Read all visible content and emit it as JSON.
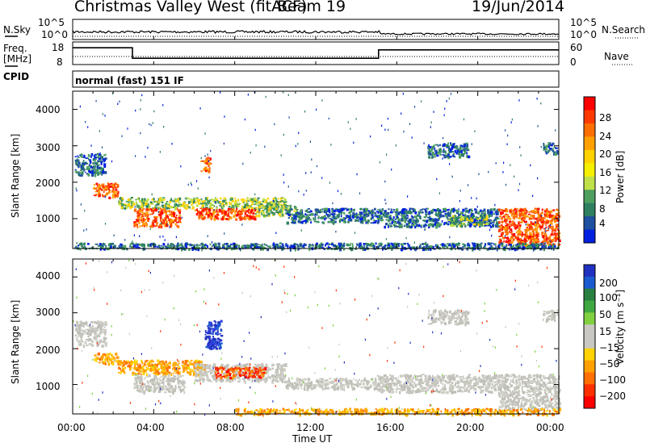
{
  "header": {
    "station": "Christmas Valley West (fitACF)",
    "beam": "Beam 19",
    "date": "19/Jun/2014"
  },
  "summary": {
    "nsky_label": "N.Sky",
    "nsky_ticks": [
      "10^5",
      "10^0"
    ],
    "nsearch_label": "N.Search",
    "nsearch_ticks": [
      "10^5",
      "10^0"
    ],
    "freq_label": [
      "Freq.",
      "[MHz]"
    ],
    "freq_ticks": [
      "18",
      "8"
    ],
    "nave_label": "Nave",
    "nave_ticks": [
      "60",
      "0"
    ],
    "cpid_label": "CPID",
    "cpid_value": "normal (fast) 151 IF",
    "freq_series_mhz": {
      "times_hours": [
        0,
        2.95,
        2.95,
        15.1,
        15.1,
        24
      ],
      "values": [
        16,
        16,
        11,
        11,
        15,
        15
      ]
    }
  },
  "chart_data": [
    {
      "type": "heatmap",
      "panel": "power",
      "ylabel": "Slant Range [km]",
      "ylim": [
        180,
        4500
      ],
      "xlim_hours": [
        0,
        24
      ],
      "y_ticks": [
        "4000",
        "3000",
        "2000",
        "1000"
      ],
      "colorbar": {
        "label": "Power [dB]",
        "ticks": [
          "28",
          "24",
          "20",
          "16",
          "12",
          "8",
          "4"
        ],
        "colors": [
          "#ff0000",
          "#ff3a00",
          "#ff6f00",
          "#ff9f00",
          "#ffd200",
          "#f5f000",
          "#c0e04a",
          "#4fa060",
          "#2e8060",
          "#1f4fa0",
          "#0020e0"
        ]
      },
      "regions": [
        {
          "t0": 0.1,
          "t1": 1.6,
          "r0": 2200,
          "r1": 2800,
          "level": "low"
        },
        {
          "t0": 1.0,
          "t1": 2.2,
          "r0": 1600,
          "r1": 2000,
          "level": "high"
        },
        {
          "t0": 2.2,
          "t1": 4.5,
          "r0": 1300,
          "r1": 1600,
          "level": "mid"
        },
        {
          "t0": 3.0,
          "t1": 5.3,
          "r0": 800,
          "r1": 1300,
          "level": "high"
        },
        {
          "t0": 4.5,
          "t1": 10.5,
          "r0": 1300,
          "r1": 1600,
          "level": "mid"
        },
        {
          "t0": 6.0,
          "t1": 9.0,
          "r0": 1000,
          "r1": 1300,
          "level": "high"
        },
        {
          "t0": 9.0,
          "t1": 11.0,
          "r0": 1100,
          "r1": 1400,
          "level": "mid"
        },
        {
          "t0": 6.3,
          "t1": 6.8,
          "r0": 2300,
          "r1": 2700,
          "level": "high"
        },
        {
          "t0": 10.5,
          "t1": 15.2,
          "r0": 900,
          "r1": 1300,
          "level": "low"
        },
        {
          "t0": 15.2,
          "t1": 21.0,
          "r0": 800,
          "r1": 1300,
          "level": "low"
        },
        {
          "t0": 18.5,
          "t1": 20.5,
          "r0": 850,
          "r1": 1100,
          "level": "mid"
        },
        {
          "t0": 21.0,
          "t1": 24.0,
          "r0": 300,
          "r1": 1300,
          "level": "high"
        },
        {
          "t0": 17.5,
          "t1": 19.5,
          "r0": 2700,
          "r1": 3100,
          "level": "low"
        },
        {
          "t0": 23.2,
          "t1": 23.9,
          "r0": 2800,
          "r1": 3100,
          "level": "low"
        },
        {
          "t0": 0.0,
          "t1": 24.0,
          "r0": 180,
          "r1": 350,
          "level": "low"
        }
      ]
    },
    {
      "type": "heatmap",
      "panel": "velocity",
      "ylabel": "Slant Range [km]",
      "ylim": [
        180,
        4500
      ],
      "xlim_hours": [
        0,
        24
      ],
      "y_ticks": [
        "4000",
        "3000",
        "2000",
        "1000"
      ],
      "x_ticks": [
        "00:00",
        "04:00",
        "08:00",
        "12:00",
        "16:00",
        "20:00",
        "00:00"
      ],
      "xlabel": "Time UT",
      "colorbar": {
        "label": "Velocity [m s⁻¹]",
        "ticks": [
          "200",
          "100",
          "50",
          "15",
          "−15",
          "−50",
          "−100",
          "−200"
        ],
        "colors": [
          "#2030c0",
          "#1a5ad0",
          "#2a8040",
          "#3fa840",
          "#80d040",
          "#c8c8c0",
          "#c8c8c0",
          "#ffd200",
          "#ffa000",
          "#ff7000",
          "#ff3000",
          "#ff0000"
        ]
      },
      "regions": [
        {
          "t0": 0.1,
          "t1": 1.6,
          "r0": 2100,
          "r1": 2800,
          "level": "gray"
        },
        {
          "t0": 1.0,
          "t1": 2.2,
          "r0": 1600,
          "r1": 1900,
          "level": "neg"
        },
        {
          "t0": 2.2,
          "t1": 6.5,
          "r0": 1300,
          "r1": 1700,
          "level": "neg"
        },
        {
          "t0": 3.0,
          "t1": 5.5,
          "r0": 800,
          "r1": 1300,
          "level": "gray"
        },
        {
          "t0": 6.0,
          "t1": 10.5,
          "r0": 1100,
          "r1": 1600,
          "level": "gray"
        },
        {
          "t0": 7.0,
          "t1": 9.5,
          "r0": 1200,
          "r1": 1500,
          "level": "strongneg"
        },
        {
          "t0": 6.5,
          "t1": 7.3,
          "r0": 2000,
          "r1": 2800,
          "level": "pos"
        },
        {
          "t0": 10.5,
          "t1": 15.0,
          "r0": 900,
          "r1": 1200,
          "level": "gray"
        },
        {
          "t0": 15.0,
          "t1": 21.0,
          "r0": 800,
          "r1": 1300,
          "level": "gray"
        },
        {
          "t0": 21.0,
          "t1": 24.0,
          "r0": 300,
          "r1": 1300,
          "level": "gray"
        },
        {
          "t0": 8.0,
          "t1": 24.0,
          "r0": 180,
          "r1": 350,
          "level": "neg"
        },
        {
          "t0": 17.5,
          "t1": 19.5,
          "r0": 2700,
          "r1": 3100,
          "level": "gray"
        },
        {
          "t0": 23.2,
          "t1": 23.9,
          "r0": 2800,
          "r1": 3100,
          "level": "gray"
        }
      ]
    }
  ]
}
